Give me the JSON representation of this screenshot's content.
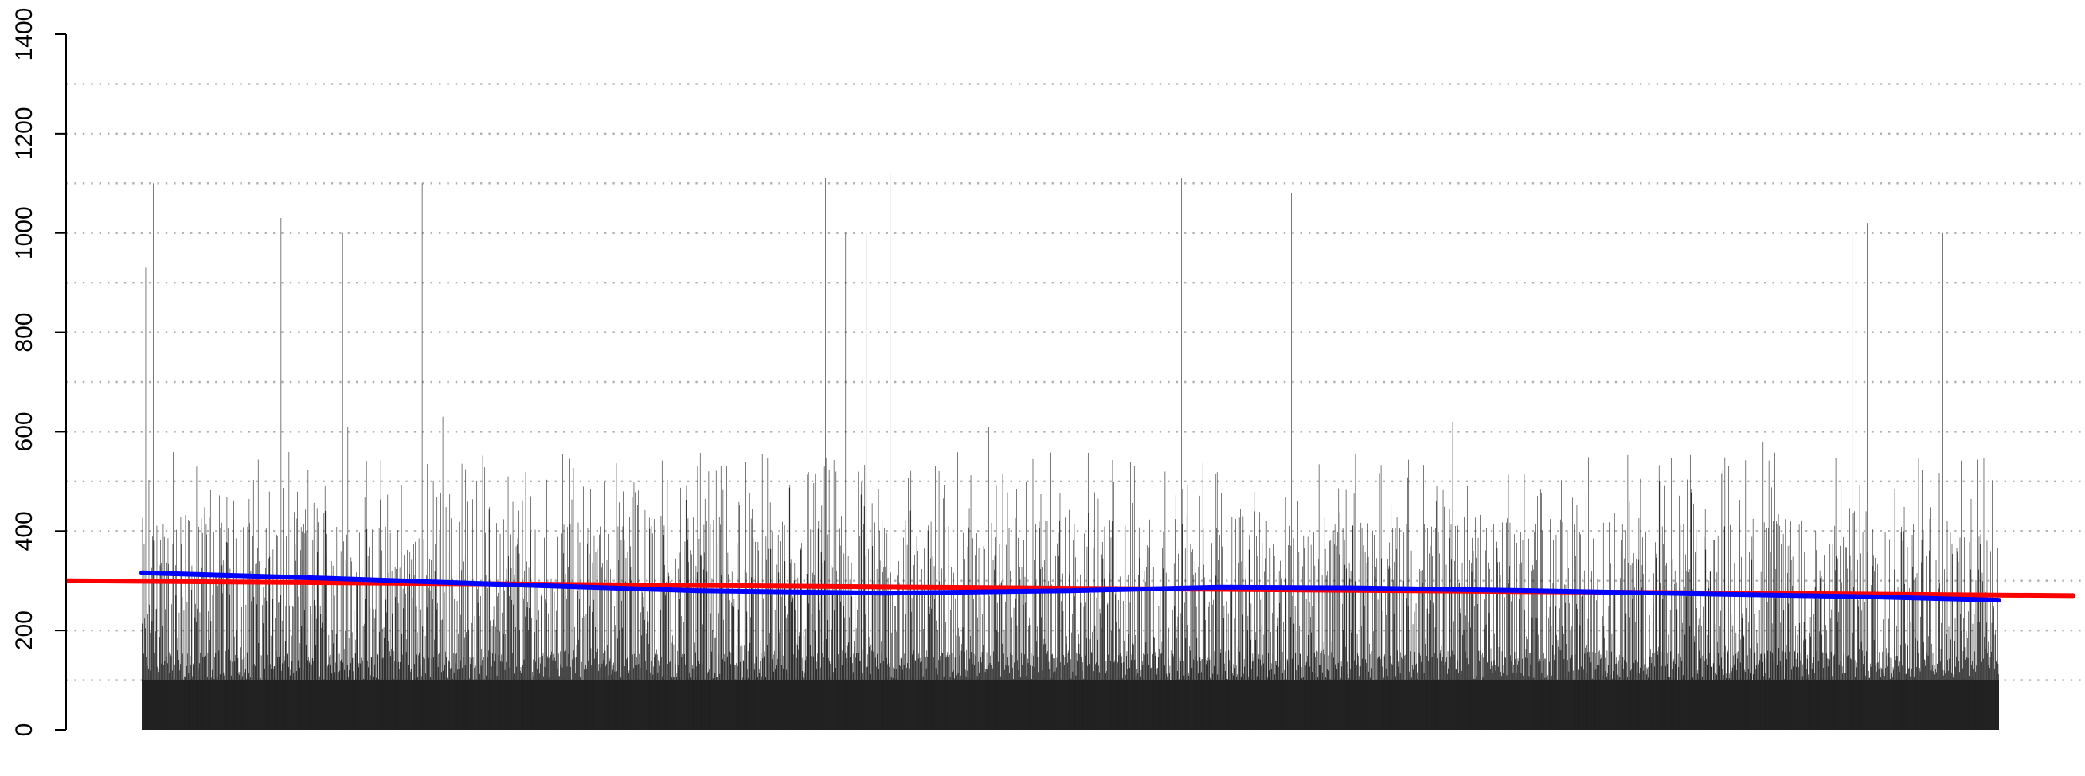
{
  "chart_data": {
    "type": "bar",
    "title": "",
    "xlabel": "",
    "ylabel": "",
    "ylim": [
      0,
      1400
    ],
    "yticks": [
      0,
      200,
      400,
      600,
      800,
      1000,
      1200,
      1400
    ],
    "ytick_labels": [
      "0",
      "200",
      "400",
      "600",
      "800",
      "1000",
      "1200",
      "1400"
    ],
    "grid": {
      "on": true,
      "style": "dotted",
      "axis": "y",
      "values": [
        100,
        200,
        300,
        400,
        500,
        600,
        700,
        800,
        900,
        1000,
        1100,
        1200,
        1300
      ]
    },
    "legend": "none",
    "bar_color": "#222222",
    "series": [
      {
        "type": "bar",
        "n_bars": 3500,
        "baseline_min": 100,
        "typical_range": [
          120,
          560
        ],
        "spikes": [
          {
            "at": 0.002,
            "value": 930
          },
          {
            "at": 0.006,
            "value": 1100
          },
          {
            "at": 0.075,
            "value": 1030
          },
          {
            "at": 0.108,
            "value": 1000
          },
          {
            "at": 0.111,
            "value": 610
          },
          {
            "at": 0.151,
            "value": 1100
          },
          {
            "at": 0.162,
            "value": 630
          },
          {
            "at": 0.368,
            "value": 1110
          },
          {
            "at": 0.379,
            "value": 1000
          },
          {
            "at": 0.39,
            "value": 1000
          },
          {
            "at": 0.403,
            "value": 1120
          },
          {
            "at": 0.456,
            "value": 610
          },
          {
            "at": 0.56,
            "value": 1110
          },
          {
            "at": 0.619,
            "value": 1080
          },
          {
            "at": 0.706,
            "value": 620
          },
          {
            "at": 0.873,
            "value": 580
          },
          {
            "at": 0.921,
            "value": 1000
          },
          {
            "at": 0.929,
            "value": 1020
          },
          {
            "at": 0.97,
            "value": 1000
          }
        ]
      },
      {
        "type": "line",
        "role": "trend",
        "color": "#ff0000",
        "points": [
          [
            -0.04,
            300
          ],
          [
            0.25,
            292
          ],
          [
            0.5,
            285
          ],
          [
            0.75,
            278
          ],
          [
            1.04,
            270
          ]
        ]
      },
      {
        "type": "line",
        "role": "smooth",
        "color": "#0000ff",
        "points": [
          [
            0.0,
            316
          ],
          [
            0.1,
            305
          ],
          [
            0.2,
            292
          ],
          [
            0.3,
            280
          ],
          [
            0.4,
            275
          ],
          [
            0.5,
            280
          ],
          [
            0.58,
            287
          ],
          [
            0.65,
            286
          ],
          [
            0.75,
            280
          ],
          [
            0.85,
            273
          ],
          [
            0.93,
            268
          ],
          [
            1.0,
            261
          ]
        ]
      }
    ]
  }
}
